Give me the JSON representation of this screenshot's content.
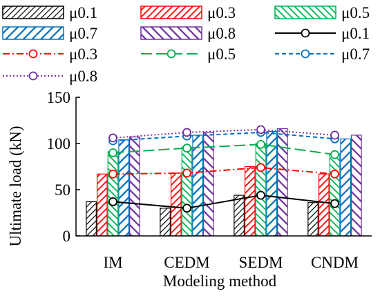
{
  "chart_data": {
    "type": "bar",
    "title": "",
    "xlabel": "Modeling method",
    "ylabel": "Ultimate load (kN)",
    "categories": [
      "IM",
      "CEDM",
      "SEDM",
      "CNDM"
    ],
    "ylim": [
      0,
      150
    ],
    "yticks": [
      0,
      50,
      100,
      150
    ],
    "grid": false,
    "legend_position": "top",
    "bar_series": [
      {
        "name": "μ0.1",
        "color": "#000000",
        "values": [
          37,
          30,
          44,
          36
        ]
      },
      {
        "name": "μ0.3",
        "color": "#ff0000",
        "values": [
          67,
          68,
          75,
          67
        ]
      },
      {
        "name": "μ0.5",
        "color": "#00b050",
        "values": [
          91,
          96,
          100,
          89
        ]
      },
      {
        "name": "μ0.7",
        "color": "#0070c0",
        "values": [
          104,
          109,
          113,
          105
        ]
      },
      {
        "name": "μ0.8",
        "color": "#7030a0",
        "values": [
          107,
          112,
          116,
          109
        ]
      }
    ],
    "line_series": [
      {
        "name": "μ0.1",
        "color": "#000000",
        "dash": "solid",
        "values": [
          37,
          30,
          44,
          35
        ]
      },
      {
        "name": "μ0.3",
        "color": "#ff0000",
        "dash": "dashdot",
        "values": [
          67,
          68,
          74,
          67
        ]
      },
      {
        "name": "μ0.5",
        "color": "#00b050",
        "dash": "longdash",
        "values": [
          90,
          95,
          99,
          88
        ]
      },
      {
        "name": "μ0.7",
        "color": "#0070c0",
        "dash": "dash",
        "values": [
          103,
          108,
          112,
          105
        ]
      },
      {
        "name": "μ0.8",
        "color": "#7030a0",
        "dash": "dot",
        "values": [
          106,
          112,
          115,
          109
        ]
      }
    ]
  }
}
